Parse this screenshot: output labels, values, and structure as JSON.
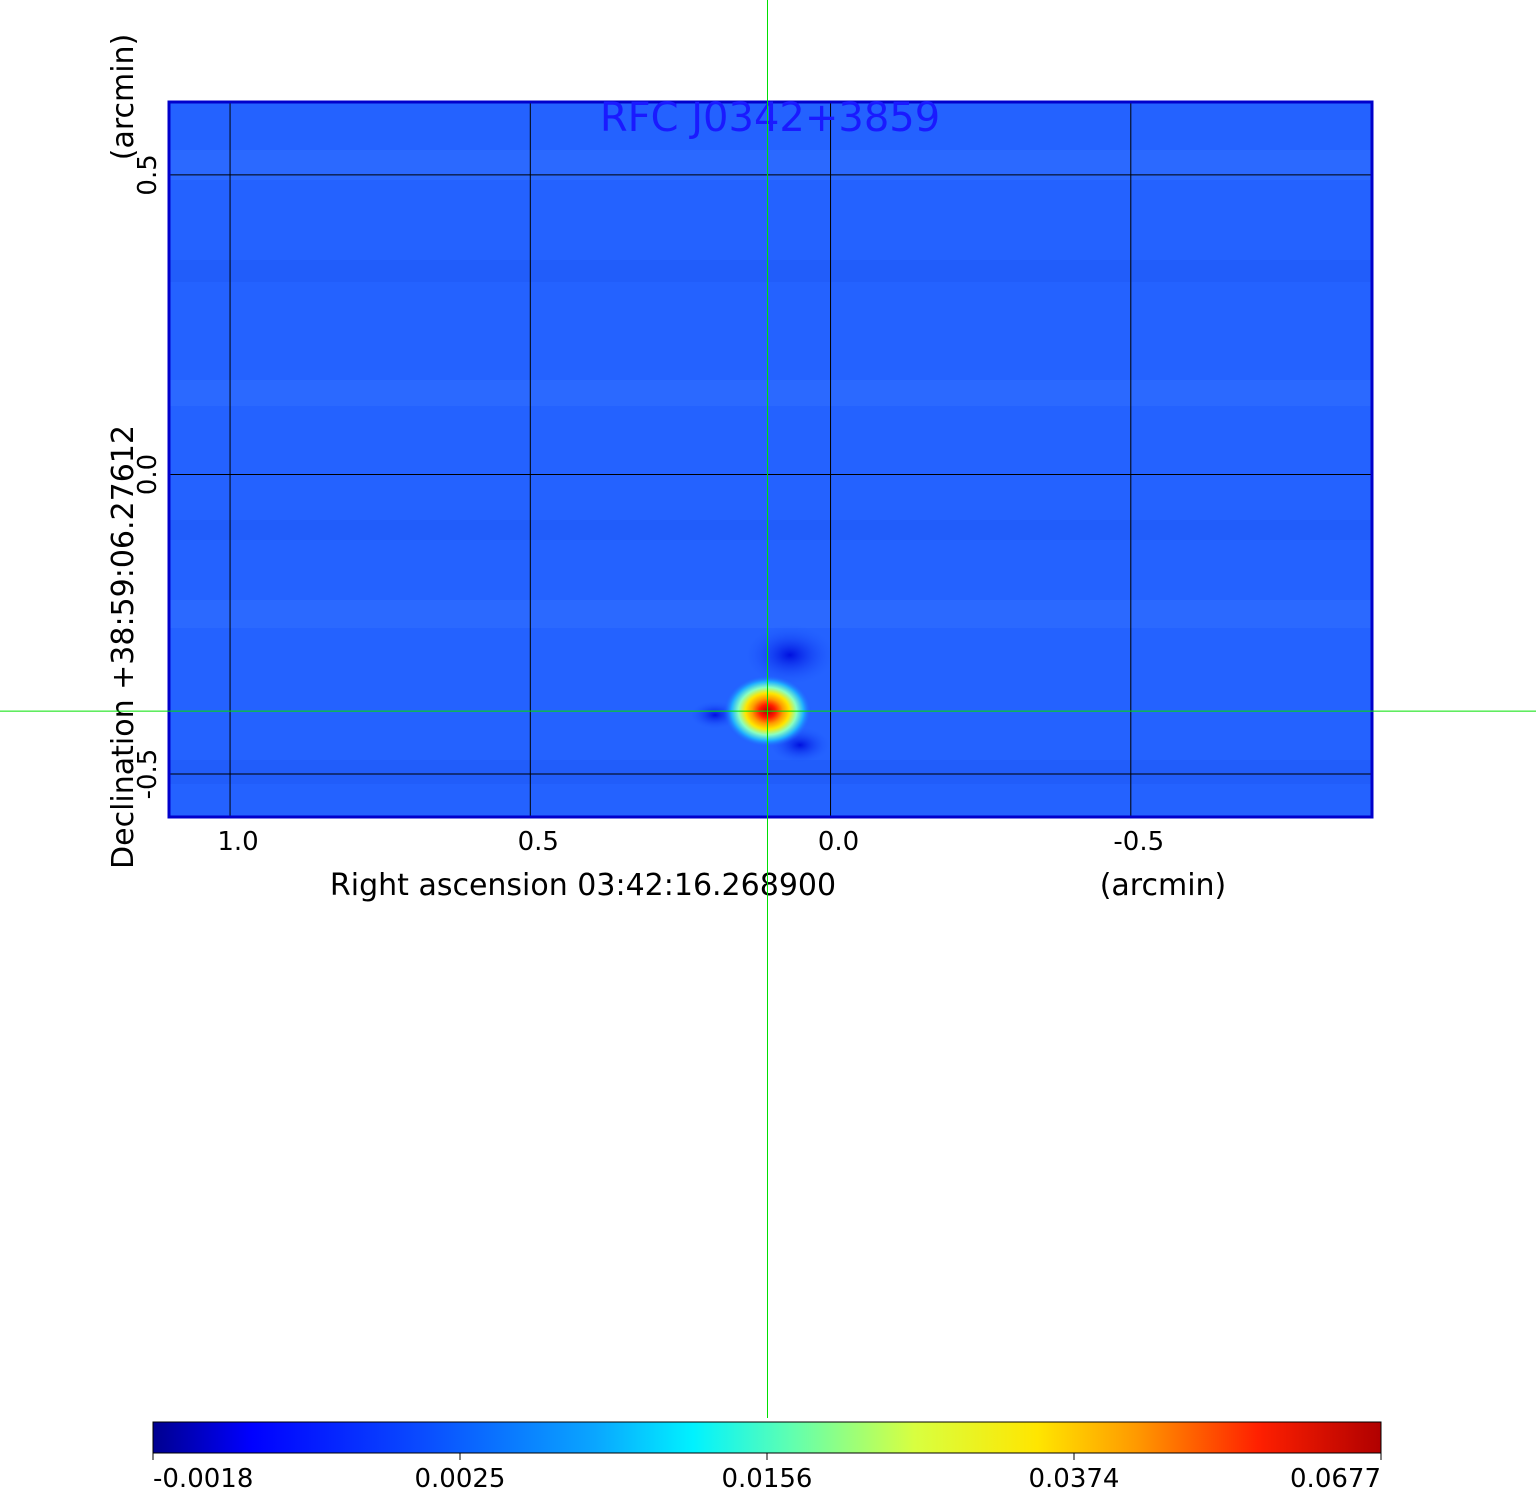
{
  "chart_data": {
    "type": "heatmap",
    "title": "RFC J0342+3859",
    "xlabel": "Right ascension  03:42:16.268900",
    "xunit": "(arcmin)",
    "ylabel": "Declination  +38:59:06.27612",
    "yunit": "(arcmin)",
    "x_axis": {
      "range": [
        1.1,
        -0.9
      ],
      "ticks": [
        1.0,
        0.5,
        0.0,
        -0.5
      ],
      "tick_labels": [
        "1.0",
        "0.5",
        "0.0",
        "-0.5"
      ]
    },
    "y_axis": {
      "range": [
        -0.57,
        0.62
      ],
      "ticks": [
        0.5,
        0.0,
        -0.5
      ],
      "tick_labels": [
        "0.5",
        "0.0",
        "-0.5"
      ]
    },
    "grid": true,
    "crosshair": {
      "x": 0.105,
      "y": -0.395,
      "color": "#00e000"
    },
    "source_peak": {
      "x": 0.105,
      "y": -0.395
    },
    "colormap": "jet",
    "colorbar": {
      "placement": "bottom",
      "ticks": [
        -0.0018,
        0.0025,
        0.0156,
        0.0374,
        0.0677
      ],
      "tick_labels": [
        "-0.0018",
        "0.0025",
        "0.0156",
        "0.0374",
        "0.0677"
      ]
    },
    "colors": {
      "title": "#1a1aff",
      "frame": "#0000cc",
      "grid": "#000000"
    }
  }
}
